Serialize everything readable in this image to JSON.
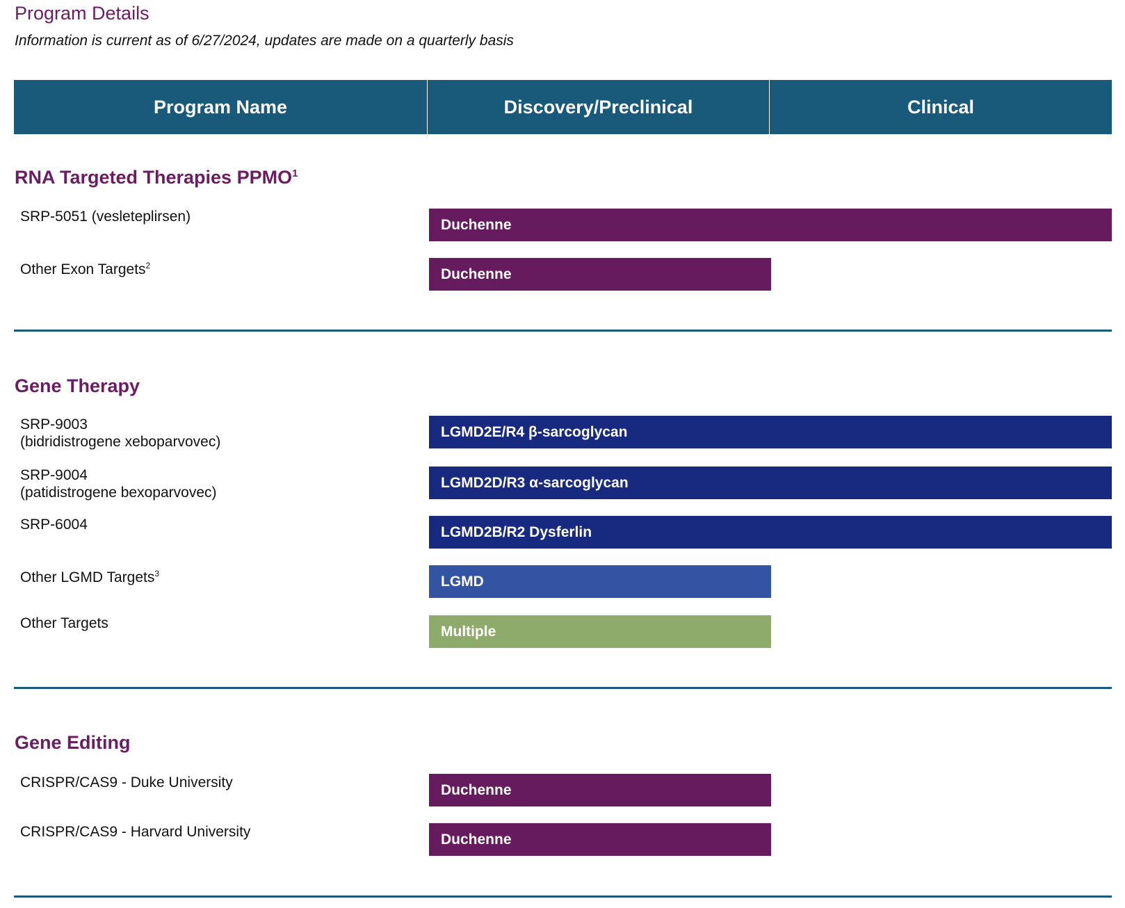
{
  "title": "Program Details",
  "subtitle": "Information is current as of 6/27/2024, updates are made on a quarterly basis",
  "table_header": {
    "program_name": "Program Name",
    "discovery": "Discovery/Preclinical",
    "clinical": "Clinical"
  },
  "colors": {
    "header": "#19597a",
    "duchenne": "#661b5e",
    "lgmd_clinical": "#182a80",
    "lgmd": "#3353a3",
    "multiple": "#8fab6c",
    "section_heading": "#6b1d63"
  },
  "sections": [
    {
      "heading": "RNA Targeted Therapies PPMO",
      "heading_sup": "1",
      "programs": [
        {
          "name": "SRP-5051 (vesleteplirsen)",
          "indication": "Duchenne",
          "stage": "Clinical"
        },
        {
          "name": "Other Exon Targets",
          "sup": "2",
          "indication": "Duchenne",
          "stage": "Discovery/Preclinical"
        }
      ]
    },
    {
      "heading": "Gene Therapy",
      "programs": [
        {
          "name": "SRP-9003",
          "name2": "(bidridistrogene xeboparvovec)",
          "indication": "LGMD2E/R4 β-sarcoglycan",
          "stage": "Clinical"
        },
        {
          "name": "SRP-9004",
          "name2": "(patidistrogene bexoparvovec)",
          "indication": "LGMD2D/R3 α-sarcoglycan",
          "stage": "Clinical"
        },
        {
          "name": "SRP-6004",
          "indication": "LGMD2B/R2 Dysferlin",
          "stage": "Clinical"
        },
        {
          "name": "Other LGMD Targets",
          "sup": "3",
          "indication": "LGMD",
          "stage": "Discovery/Preclinical"
        },
        {
          "name": "Other Targets",
          "indication": "Multiple",
          "stage": "Discovery/Preclinical"
        }
      ]
    },
    {
      "heading": "Gene Editing",
      "programs": [
        {
          "name": "CRISPR/CAS9 - Duke University",
          "indication": "Duchenne",
          "stage": "Discovery/Preclinical"
        },
        {
          "name": "CRISPR/CAS9 - Harvard University",
          "indication": "Duchenne",
          "stage": "Discovery/Preclinical"
        }
      ]
    }
  ]
}
